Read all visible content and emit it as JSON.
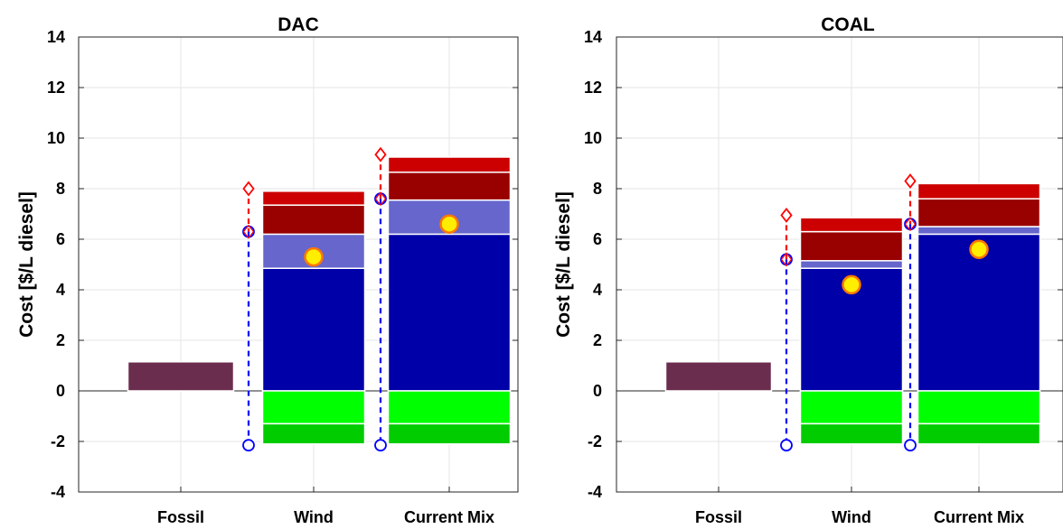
{
  "chart_data": [
    {
      "type": "bar",
      "title": "DAC",
      "xlabel": "",
      "ylabel": "Cost [$/L diesel]",
      "ylim": [
        -4,
        14
      ],
      "yticks": [
        "-4",
        "-2",
        "0",
        "2",
        "4",
        "6",
        "8",
        "10",
        "12",
        "14"
      ],
      "categories": [
        "Fossil",
        "Wind",
        "Current Mix"
      ],
      "grid": true,
      "stacked": true,
      "colors": [
        "#6b2d4e",
        "#0000a8",
        "#6666cc",
        "#990000",
        "#cc0000",
        "#00ff00",
        "#00cc00"
      ],
      "bars": [
        {
          "category": "Fossil",
          "segments": [
            {
              "from": 0,
              "to": 1.15,
              "color": "#6b2d4e"
            }
          ]
        },
        {
          "category": "Wind",
          "segments": [
            {
              "from": 0,
              "to": 4.85,
              "color": "#0000a8"
            },
            {
              "from": 4.85,
              "to": 6.2,
              "color": "#6666cc"
            },
            {
              "from": 6.2,
              "to": 7.35,
              "color": "#990000"
            },
            {
              "from": 7.35,
              "to": 7.9,
              "color": "#cc0000"
            },
            {
              "from": -1.3,
              "to": 0,
              "color": "#00ff00"
            },
            {
              "from": -2.1,
              "to": -1.3,
              "color": "#00cc00"
            }
          ],
          "net_cost": 5.3,
          "upper_ref": 8.0,
          "mid_ref": 6.3,
          "lower_ref": -2.15
        },
        {
          "category": "Current Mix",
          "segments": [
            {
              "from": 0,
              "to": 6.2,
              "color": "#0000a8"
            },
            {
              "from": 6.2,
              "to": 7.55,
              "color": "#6666cc"
            },
            {
              "from": 7.55,
              "to": 8.65,
              "color": "#990000"
            },
            {
              "from": 8.65,
              "to": 9.25,
              "color": "#cc0000"
            },
            {
              "from": -1.3,
              "to": 0,
              "color": "#00ff00"
            },
            {
              "from": -2.1,
              "to": -1.3,
              "color": "#00cc00"
            }
          ],
          "net_cost": 6.6,
          "upper_ref": 9.35,
          "mid_ref": 7.6,
          "lower_ref": -2.15
        }
      ]
    },
    {
      "type": "bar",
      "title": "COAL",
      "xlabel": "",
      "ylabel": "Cost [$/L diesel]",
      "ylim": [
        -4,
        14
      ],
      "yticks": [
        "-4",
        "-2",
        "0",
        "2",
        "4",
        "6",
        "8",
        "10",
        "12",
        "14"
      ],
      "categories": [
        "Fossil",
        "Wind",
        "Current Mix"
      ],
      "grid": true,
      "stacked": true,
      "colors": [
        "#6b2d4e",
        "#0000a8",
        "#6666cc",
        "#990000",
        "#cc0000",
        "#00ff00",
        "#00cc00"
      ],
      "bars": [
        {
          "category": "Fossil",
          "segments": [
            {
              "from": 0,
              "to": 1.15,
              "color": "#6b2d4e"
            }
          ]
        },
        {
          "category": "Wind",
          "segments": [
            {
              "from": 0,
              "to": 4.85,
              "color": "#0000a8"
            },
            {
              "from": 4.85,
              "to": 5.15,
              "color": "#6666cc"
            },
            {
              "from": 5.15,
              "to": 6.3,
              "color": "#990000"
            },
            {
              "from": 6.3,
              "to": 6.85,
              "color": "#cc0000"
            },
            {
              "from": -1.3,
              "to": 0,
              "color": "#00ff00"
            },
            {
              "from": -2.1,
              "to": -1.3,
              "color": "#00cc00"
            }
          ],
          "net_cost": 4.2,
          "upper_ref": 6.95,
          "mid_ref": 5.2,
          "lower_ref": -2.15
        },
        {
          "category": "Current Mix",
          "segments": [
            {
              "from": 0,
              "to": 6.2,
              "color": "#0000a8"
            },
            {
              "from": 6.2,
              "to": 6.5,
              "color": "#6666cc"
            },
            {
              "from": 6.5,
              "to": 7.6,
              "color": "#990000"
            },
            {
              "from": 7.6,
              "to": 8.2,
              "color": "#cc0000"
            },
            {
              "from": -1.3,
              "to": 0,
              "color": "#00ff00"
            },
            {
              "from": -2.1,
              "to": -1.3,
              "color": "#00cc00"
            }
          ],
          "net_cost": 5.6,
          "upper_ref": 8.3,
          "mid_ref": 6.6,
          "lower_ref": -2.15
        }
      ]
    }
  ]
}
